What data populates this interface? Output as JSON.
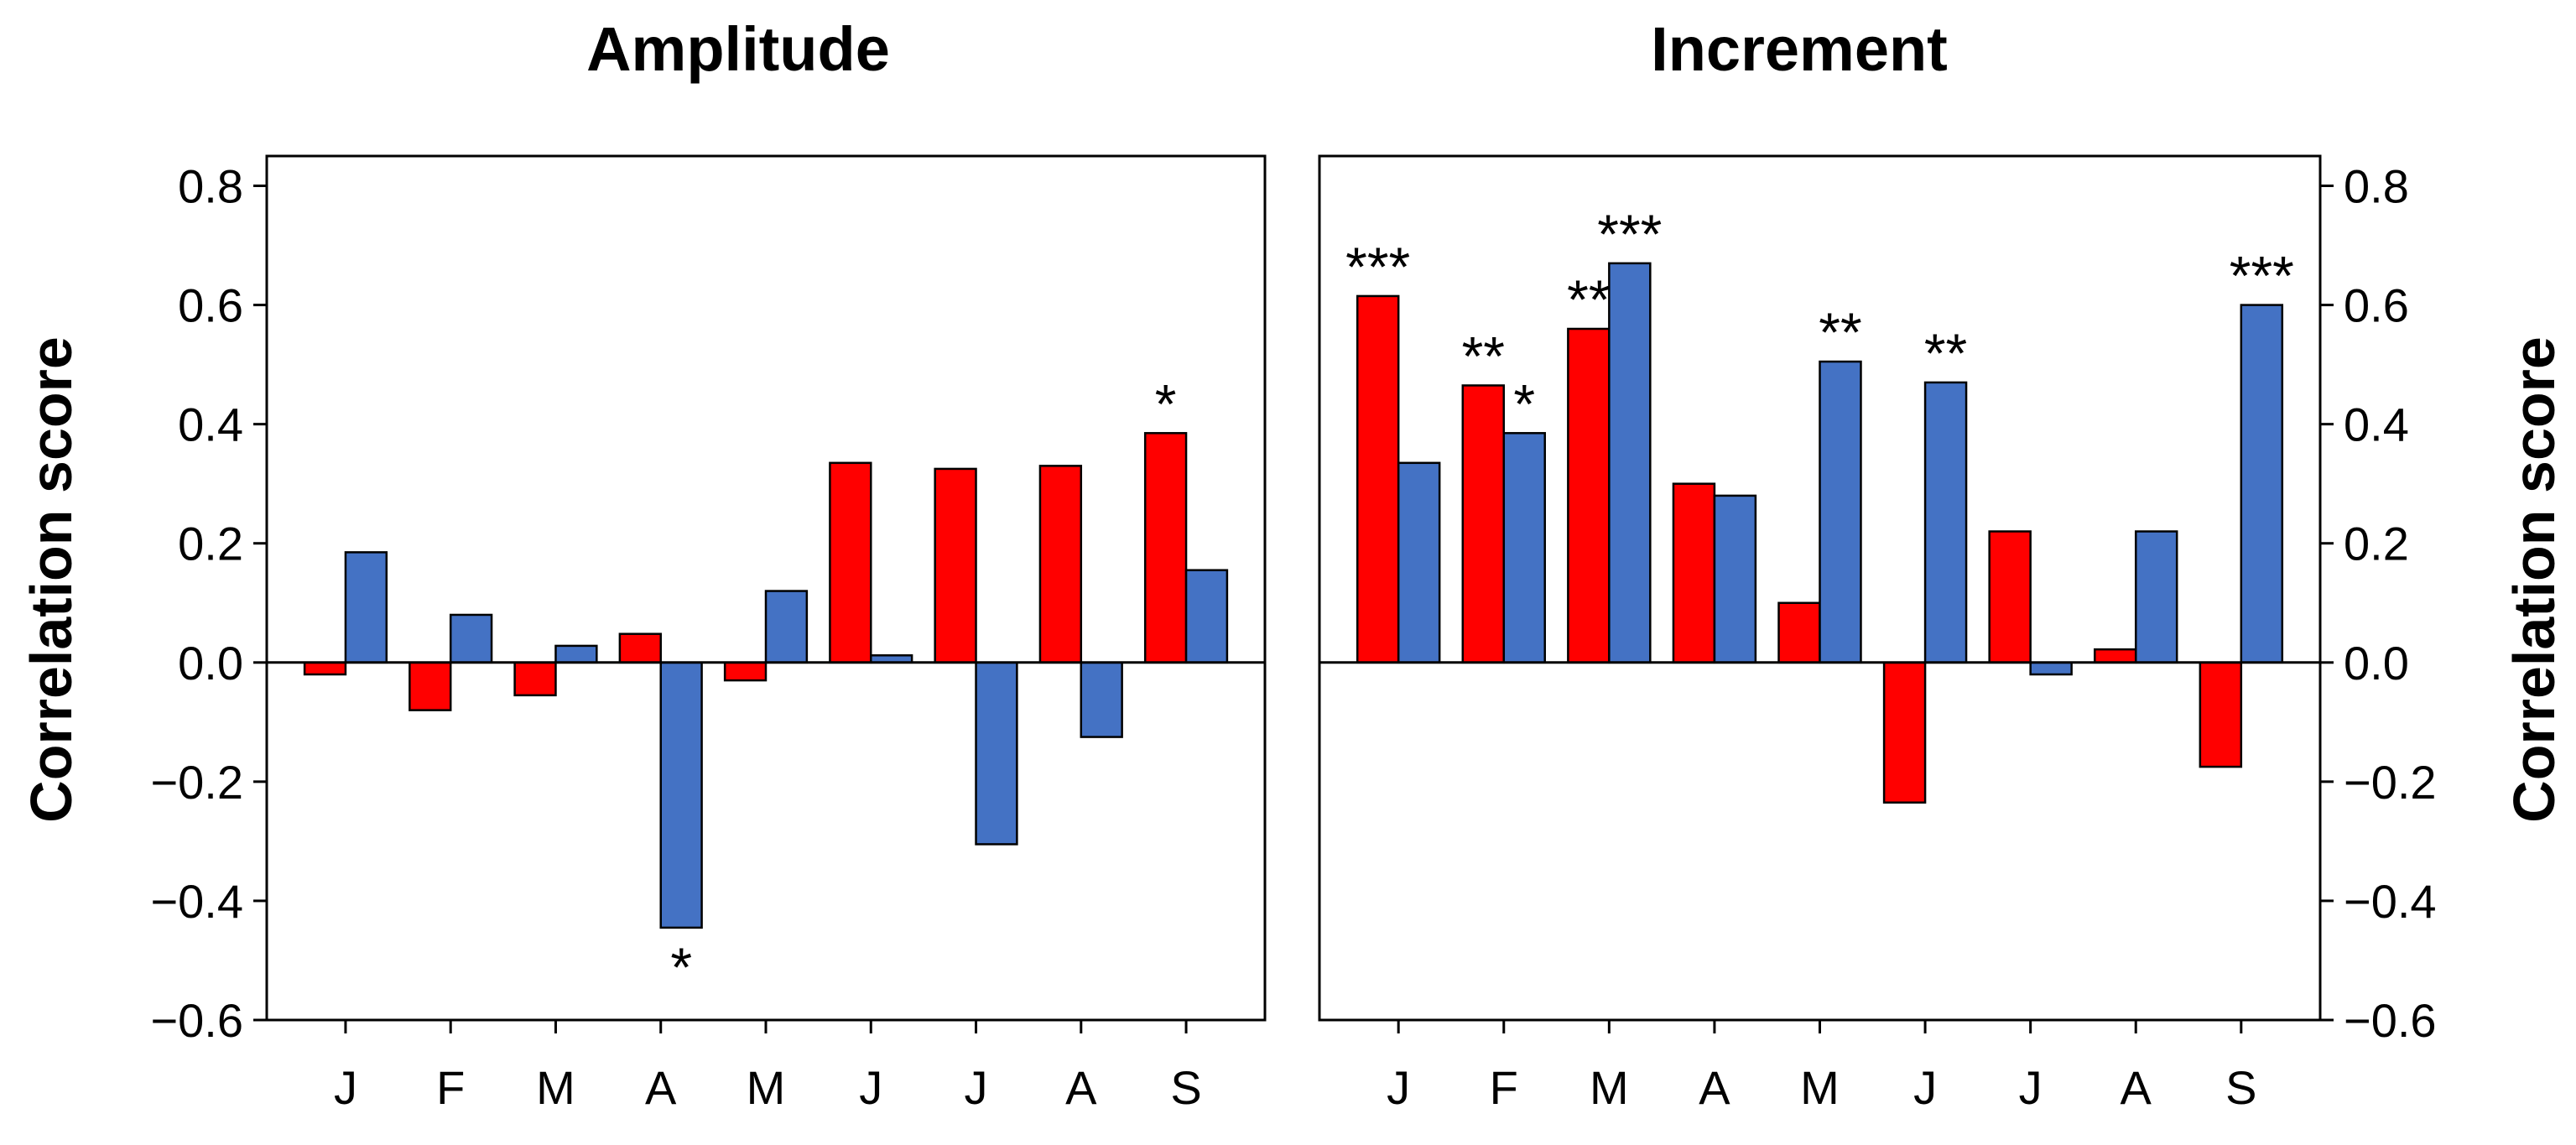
{
  "chart_data": [
    {
      "type": "bar",
      "title": "Amplitude",
      "xlabel": "",
      "ylabel": "Correlation score",
      "ylim": [
        -0.6,
        0.85
      ],
      "yticks": [
        0.8,
        0.6,
        0.4,
        0.2,
        0.0,
        -0.2,
        -0.4,
        -0.6
      ],
      "ytick_labels": [
        "0.8",
        "0.6",
        "0.4",
        "0.2",
        "0.0",
        "−0.2",
        "−0.4",
        "−0.6"
      ],
      "yaxis_side": "left",
      "categories": [
        "J",
        "F",
        "M",
        "A",
        "M",
        "J",
        "J",
        "A",
        "S"
      ],
      "series": [
        {
          "name": "red",
          "color": "#ff0000",
          "values": [
            -0.02,
            -0.08,
            -0.055,
            0.048,
            -0.03,
            0.335,
            0.325,
            0.33,
            0.385
          ],
          "significance": [
            "",
            "",
            "",
            "",
            "",
            "",
            "",
            "",
            "*"
          ]
        },
        {
          "name": "blue",
          "color": "#4472c4",
          "values": [
            0.185,
            0.08,
            0.028,
            -0.445,
            0.12,
            0.012,
            -0.305,
            -0.125,
            0.155
          ],
          "significance": [
            "",
            "",
            "",
            "*",
            "",
            "",
            "",
            "",
            ""
          ]
        }
      ]
    },
    {
      "type": "bar",
      "title": "Increment",
      "xlabel": "",
      "ylabel": "Correlation score",
      "ylim": [
        -0.6,
        0.85
      ],
      "yticks": [
        0.8,
        0.6,
        0.4,
        0.2,
        0.0,
        -0.2,
        -0.4,
        -0.6
      ],
      "ytick_labels": [
        "0.8",
        "0.6",
        "0.4",
        "0.2",
        "0.0",
        "−0.2",
        "−0.4",
        "−0.6"
      ],
      "yaxis_side": "right",
      "categories": [
        "J",
        "F",
        "M",
        "A",
        "M",
        "J",
        "J",
        "A",
        "S"
      ],
      "series": [
        {
          "name": "red",
          "color": "#ff0000",
          "values": [
            0.615,
            0.465,
            0.56,
            0.3,
            0.1,
            -0.235,
            0.22,
            0.022,
            -0.175
          ],
          "significance": [
            "***",
            "**",
            "**",
            "",
            "",
            "",
            "",
            "",
            ""
          ]
        },
        {
          "name": "blue",
          "color": "#4472c4",
          "values": [
            0.335,
            0.385,
            0.67,
            0.28,
            0.505,
            0.47,
            -0.02,
            0.22,
            0.6
          ],
          "significance": [
            "",
            "*",
            "***",
            "",
            "**",
            "**",
            "",
            "",
            "***"
          ]
        }
      ]
    }
  ]
}
